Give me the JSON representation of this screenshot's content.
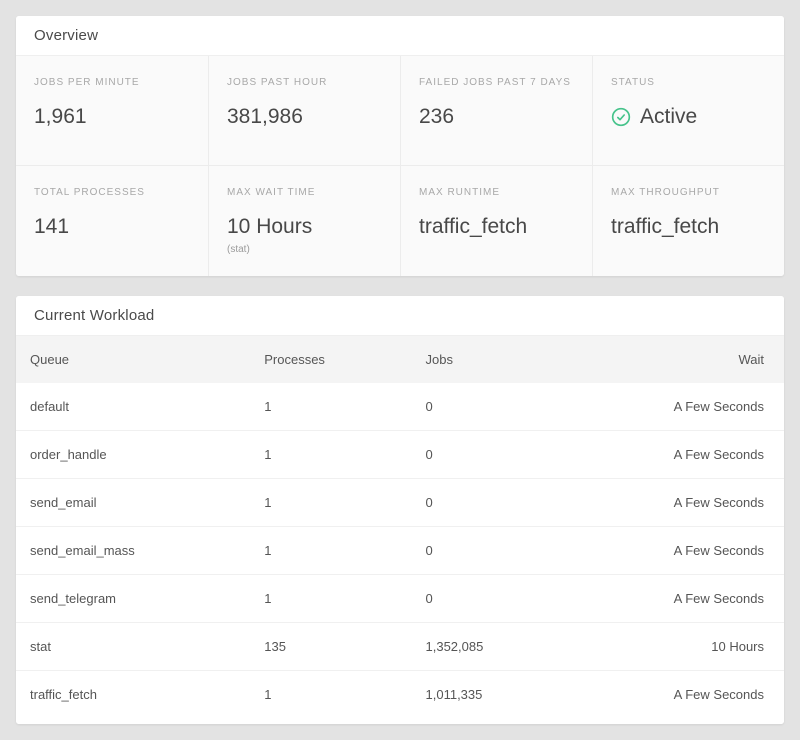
{
  "colors": {
    "accent_green": "#46c38b",
    "page_background": "#e3e3e3"
  },
  "overview": {
    "title": "Overview",
    "stats": [
      {
        "label": "JOBS PER MINUTE",
        "value": "1,961",
        "sub": "",
        "icon": ""
      },
      {
        "label": "JOBS PAST HOUR",
        "value": "381,986",
        "sub": "",
        "icon": ""
      },
      {
        "label": "FAILED JOBS PAST 7 DAYS",
        "value": "236",
        "sub": "",
        "icon": ""
      },
      {
        "label": "STATUS",
        "value": "Active",
        "sub": "",
        "icon": "check-circle-icon"
      },
      {
        "label": "TOTAL PROCESSES",
        "value": "141",
        "sub": "",
        "icon": ""
      },
      {
        "label": "MAX WAIT TIME",
        "value": "10 Hours",
        "sub": "(stat)",
        "icon": ""
      },
      {
        "label": "MAX RUNTIME",
        "value": "traffic_fetch",
        "sub": "",
        "icon": ""
      },
      {
        "label": "MAX THROUGHPUT",
        "value": "traffic_fetch",
        "sub": "",
        "icon": ""
      }
    ]
  },
  "workload": {
    "title": "Current Workload",
    "columns": [
      "Queue",
      "Processes",
      "Jobs",
      "Wait"
    ],
    "rows": [
      {
        "queue": "default",
        "processes": "1",
        "jobs": "0",
        "wait": "A Few Seconds"
      },
      {
        "queue": "order_handle",
        "processes": "1",
        "jobs": "0",
        "wait": "A Few Seconds"
      },
      {
        "queue": "send_email",
        "processes": "1",
        "jobs": "0",
        "wait": "A Few Seconds"
      },
      {
        "queue": "send_email_mass",
        "processes": "1",
        "jobs": "0",
        "wait": "A Few Seconds"
      },
      {
        "queue": "send_telegram",
        "processes": "1",
        "jobs": "0",
        "wait": "A Few Seconds"
      },
      {
        "queue": "stat",
        "processes": "135",
        "jobs": "1,352,085",
        "wait": "10 Hours"
      },
      {
        "queue": "traffic_fetch",
        "processes": "1",
        "jobs": "1,011,335",
        "wait": "A Few Seconds"
      }
    ]
  }
}
